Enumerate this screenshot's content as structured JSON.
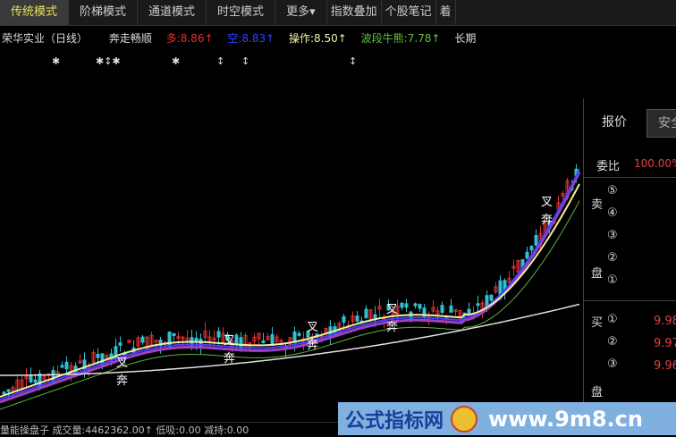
{
  "tabs": [
    {
      "label": "传统模式",
      "active": true
    },
    {
      "label": "阶梯模式"
    },
    {
      "label": "通道模式"
    },
    {
      "label": "时空模式"
    },
    {
      "label": "更多▾"
    },
    {
      "label": "指数叠加"
    },
    {
      "label": "个股笔记"
    },
    {
      "label": "着"
    }
  ],
  "info": {
    "stock": "荣华实业（日线）",
    "signal": "奔走畅顺",
    "duo": "多:8.86↑",
    "kong": "空:8.83↑",
    "caozuo": "操作:8.50↑",
    "boduan": "波段牛熊:7.78↑",
    "changqi": "长期"
  },
  "marks": [
    "✱",
    "✱↕✱",
    "✱",
    "↕",
    "↕",
    "↕"
  ],
  "chart": {
    "signal_label_1": "叉",
    "signal_label_2": "奔"
  },
  "panel": {
    "tab1": "报价",
    "tab2": "安全",
    "weibi_label": "委比",
    "weibi_value": "100.00%",
    "sell_label_1": "卖",
    "sell_label_2": "盘",
    "sell_levels": [
      "⑤",
      "④",
      "③",
      "②",
      "①"
    ],
    "buy_label_1": "买",
    "buy_label_2": "盘",
    "buy_levels": [
      "①",
      "②",
      "③"
    ],
    "buy_prices": [
      "9.98",
      "9.97",
      "9.96"
    ]
  },
  "status": {
    "text": "量能操盘子  成交量:4462362.00↑  低吸:0.00  减持:0.00"
  },
  "banner": {
    "text1": "公式指标网",
    "text2": "www.9m8.cn"
  },
  "colors": {
    "up": "#e03030",
    "down": "#30c0d0",
    "ma_yellow": "#f0f0a0",
    "ma_blue": "#4040ff",
    "ma_purple": "#a040c0",
    "ma_green": "#60b040",
    "long": "#e0e0e0"
  }
}
